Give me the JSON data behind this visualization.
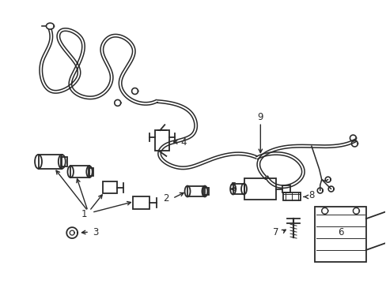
{
  "background_color": "#ffffff",
  "line_color": "#2a2a2a",
  "lw": 1.3
}
